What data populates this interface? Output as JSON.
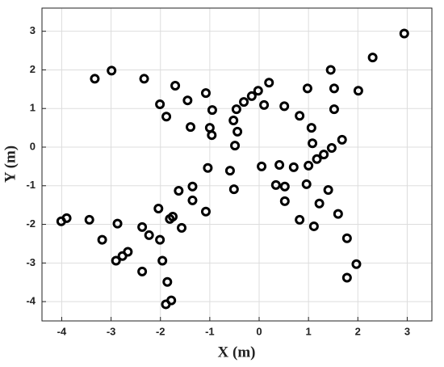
{
  "chart_data": {
    "type": "scatter",
    "x_label": "X (m)",
    "y_label": "Y (m)",
    "xlim": [
      -4.4,
      3.5
    ],
    "ylim": [
      -4.5,
      3.6
    ],
    "xticks": [
      -4,
      -3,
      -2,
      -1,
      0,
      1,
      2,
      3
    ],
    "yticks": [
      -4,
      -3,
      -2,
      -1,
      0,
      1,
      2,
      3
    ],
    "grid": true,
    "color": "#000000",
    "x": [
      2.94,
      2.3,
      -3.33,
      -2.99,
      -2.33,
      -1.7,
      -2.01,
      -1.88,
      -1.45,
      -1.08,
      -0.95,
      -1.39,
      -1.0,
      -0.96,
      -0.46,
      -0.31,
      -0.15,
      -0.02,
      0.2,
      0.1,
      -0.52,
      -0.44,
      -0.49,
      0.51,
      0.82,
      0.98,
      1.45,
      1.52,
      2.01,
      1.52,
      1.06,
      1.08,
      1.31,
      1.17,
      1.0,
      1.47,
      1.68,
      0.7,
      0.41,
      0.05,
      0.34,
      0.52,
      0.96,
      1.4,
      1.22,
      0.52,
      1.6,
      0.82,
      1.11,
      1.78,
      1.97,
      1.78,
      -0.59,
      -0.51,
      -1.04,
      -1.35,
      -1.63,
      -1.35,
      -1.08,
      -1.57,
      -2.04,
      -1.75,
      -1.81,
      -2.01,
      -2.23,
      -2.37,
      -2.87,
      -3.44,
      -3.9,
      -4.01,
      -3.18,
      -2.66,
      -2.77,
      -2.9,
      -1.96,
      -2.37,
      -1.86,
      -1.78,
      -1.89
    ],
    "y": [
      2.94,
      2.32,
      1.77,
      1.98,
      1.77,
      1.59,
      1.11,
      0.79,
      1.21,
      1.4,
      0.96,
      0.52,
      0.5,
      0.31,
      0.98,
      1.17,
      1.32,
      1.46,
      1.67,
      1.09,
      0.69,
      0.4,
      0.04,
      1.06,
      0.81,
      1.52,
      2.0,
      1.52,
      1.46,
      0.98,
      0.5,
      0.1,
      -0.19,
      -0.31,
      -0.48,
      -0.02,
      0.19,
      -0.52,
      -0.46,
      -0.5,
      -0.98,
      -1.02,
      -0.96,
      -1.11,
      -1.46,
      -1.4,
      -1.73,
      -1.88,
      -2.05,
      -2.36,
      -3.03,
      -3.38,
      -0.61,
      -1.09,
      -0.54,
      -1.02,
      -1.13,
      -1.38,
      -1.67,
      -2.09,
      -1.59,
      -1.8,
      -1.86,
      -2.4,
      -2.28,
      -2.07,
      -1.98,
      -1.88,
      -1.84,
      -1.92,
      -2.4,
      -2.71,
      -2.82,
      -2.94,
      -2.94,
      -3.22,
      -3.49,
      -3.97,
      -4.07
    ]
  }
}
